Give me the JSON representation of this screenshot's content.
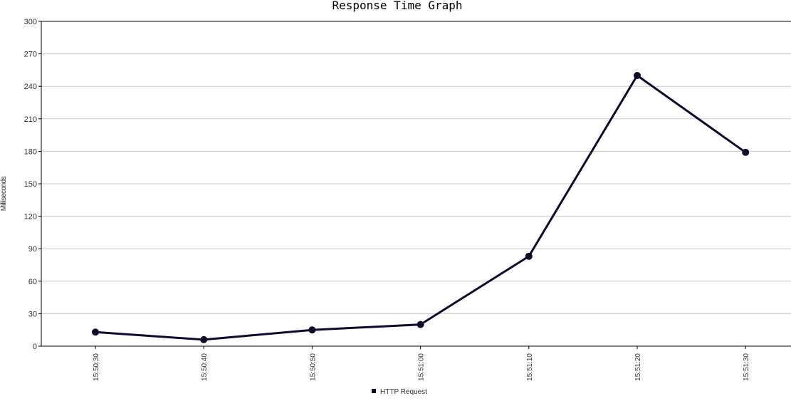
{
  "chart_data": {
    "type": "line",
    "title": "Response Time Graph",
    "xlabel": "",
    "ylabel": "Milliseconds",
    "ylim": [
      0,
      300
    ],
    "yticks": [
      0,
      30,
      60,
      90,
      120,
      150,
      180,
      210,
      240,
      270,
      300
    ],
    "categories": [
      "15:50:30",
      "15:50:40",
      "15:50:50",
      "15:51:00",
      "15:51:10",
      "15:51:20",
      "15:51:30"
    ],
    "series": [
      {
        "name": "HTTP Request",
        "color": "#0d0a2e",
        "values": [
          13,
          6,
          15,
          20,
          83,
          250,
          179
        ]
      }
    ],
    "grid": true,
    "legend_position": "bottom"
  }
}
